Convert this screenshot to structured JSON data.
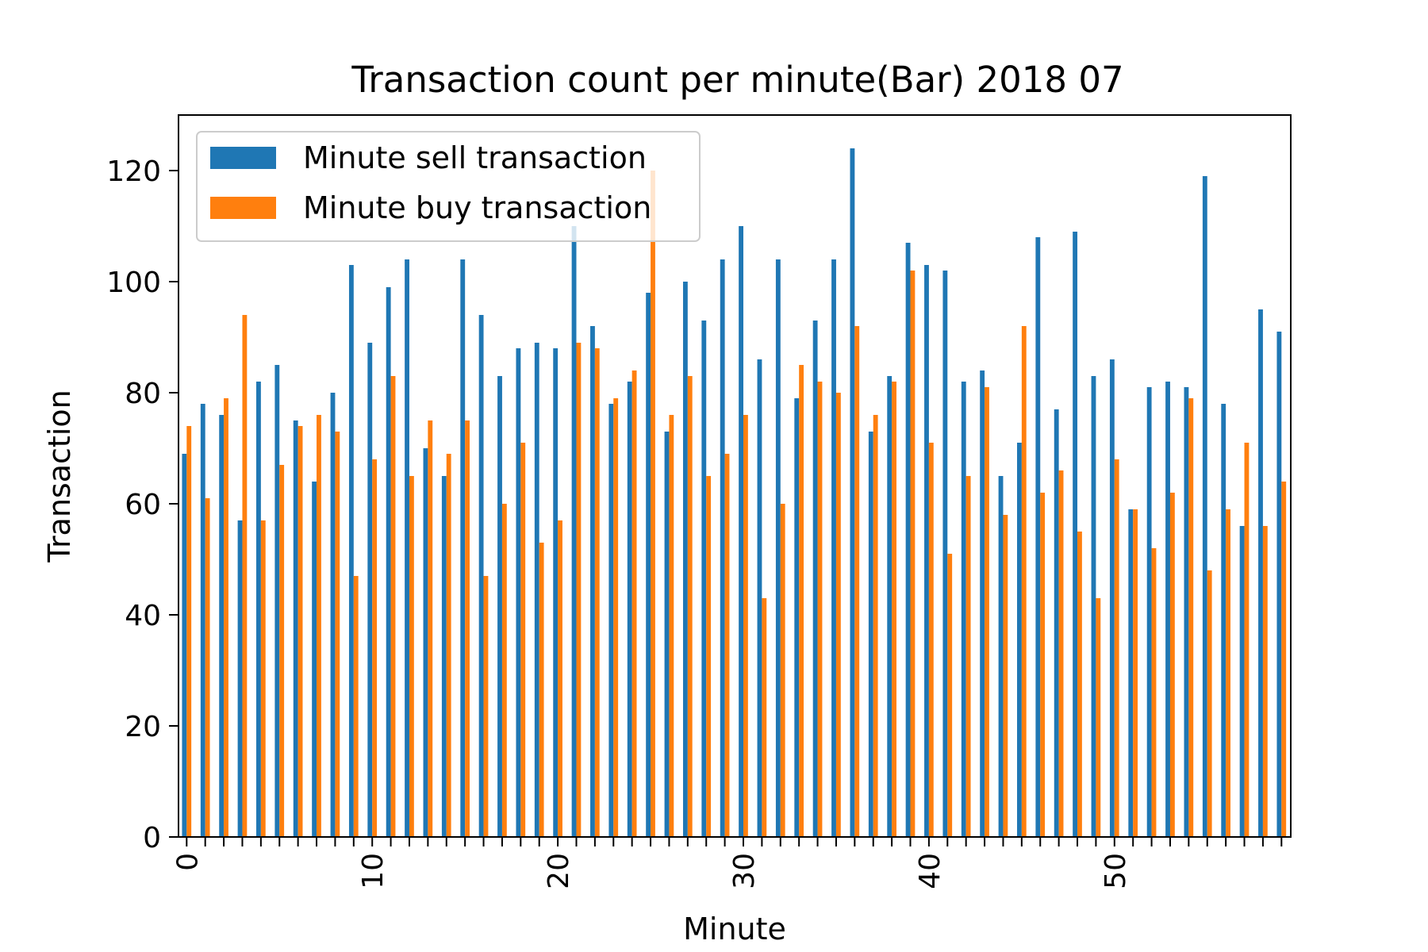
{
  "chart_data": {
    "type": "bar",
    "title": "Transaction count per minute(Bar) 2018 07",
    "xlabel": "Minute",
    "ylabel": "Transaction",
    "ylim": [
      0,
      130
    ],
    "yticks": [
      0,
      20,
      40,
      60,
      80,
      100,
      120
    ],
    "xtick_labels": [
      "0",
      "10",
      "20",
      "30",
      "40",
      "50"
    ],
    "categories": [
      0,
      1,
      2,
      3,
      4,
      5,
      6,
      7,
      8,
      9,
      10,
      11,
      12,
      13,
      14,
      15,
      16,
      17,
      18,
      19,
      20,
      21,
      22,
      23,
      24,
      25,
      26,
      27,
      28,
      29,
      30,
      31,
      32,
      33,
      34,
      35,
      36,
      37,
      38,
      39,
      40,
      41,
      42,
      43,
      44,
      45,
      46,
      47,
      48,
      49,
      50,
      51,
      52,
      53,
      54,
      55,
      56,
      57,
      58,
      59
    ],
    "legend_position": "upper-left",
    "grid": false,
    "series": [
      {
        "name": "Minute sell transaction",
        "color": "#1f77b4",
        "values": [
          69,
          78,
          76,
          57,
          82,
          85,
          75,
          64,
          80,
          103,
          89,
          99,
          104,
          70,
          65,
          104,
          94,
          83,
          88,
          89,
          88,
          110,
          92,
          78,
          82,
          98,
          73,
          100,
          93,
          104,
          110,
          86,
          104,
          79,
          93,
          104,
          124,
          73,
          83,
          107,
          103,
          102,
          82,
          84,
          65,
          71,
          108,
          77,
          109,
          83,
          86,
          59,
          81,
          82,
          81,
          119,
          78,
          56,
          95,
          91
        ]
      },
      {
        "name": "Minute buy transaction",
        "color": "#ff7f0e",
        "values": [
          74,
          61,
          79,
          94,
          57,
          67,
          74,
          76,
          73,
          47,
          68,
          83,
          65,
          75,
          69,
          75,
          47,
          60,
          71,
          53,
          57,
          89,
          88,
          79,
          84,
          120,
          76,
          83,
          65,
          69,
          76,
          43,
          60,
          85,
          82,
          80,
          92,
          76,
          82,
          102,
          71,
          51,
          65,
          81,
          58,
          92,
          62,
          66,
          55,
          43,
          68,
          59,
          52,
          62,
          79,
          48,
          59,
          71,
          56,
          64
        ]
      }
    ]
  }
}
